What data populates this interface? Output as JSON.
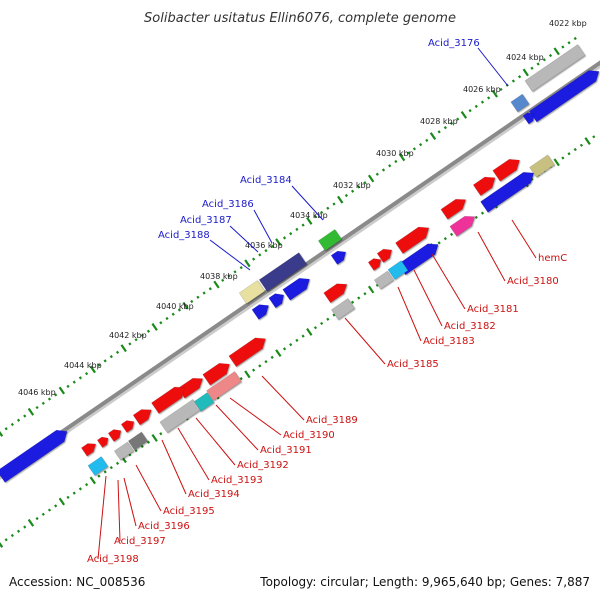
{
  "title": "Solibacter usitatus Ellin6076, complete genome",
  "footer": {
    "accession_label": "Accession:",
    "accession": "NC_008536",
    "topology_label": "Topology:",
    "topology": "circular",
    "length_label": "Length:",
    "length": "9,965,640 bp",
    "genes_label": "Genes:",
    "genes": "7,887"
  },
  "colors": {
    "backbone": "#8a8a8a",
    "tick": "#1a8a1a",
    "label_blue": "#1a1acc",
    "label_red": "#cc1111",
    "gene_red": "#ee1111",
    "gene_blue": "#1a1ae0",
    "gene_gray": "#b8b8b8",
    "gene_navy": "#3a3a8c",
    "gene_green": "#33bb33",
    "gene_yellow": "#e8e0a0",
    "gene_cyan": "#22bbee",
    "gene_pink": "#ee3399",
    "gene_teal": "#22bbbb",
    "gene_olive": "#c8c080",
    "gene_steel": "#5588cc",
    "gene_darkgray": "#777777",
    "gene_lightred": "#ee8888"
  },
  "ticks": [
    "4022 kbp",
    "4024 kbp",
    "4026 kbp",
    "4028 kbp",
    "4030 kbp",
    "4032 kbp",
    "4034 kbp",
    "4036 kbp",
    "4038 kbp",
    "4040 kbp",
    "4042 kbp",
    "4044 kbp",
    "4046 kbp"
  ],
  "genes": [
    {
      "label": "Acid_3176",
      "strand": "forward"
    },
    {
      "label": "Acid_3184",
      "strand": "forward"
    },
    {
      "label": "Acid_3186",
      "strand": "forward"
    },
    {
      "label": "Acid_3187",
      "strand": "forward"
    },
    {
      "label": "Acid_3188",
      "strand": "forward"
    },
    {
      "label": "hemC",
      "strand": "reverse"
    },
    {
      "label": "Acid_3180",
      "strand": "reverse"
    },
    {
      "label": "Acid_3181",
      "strand": "reverse"
    },
    {
      "label": "Acid_3182",
      "strand": "reverse"
    },
    {
      "label": "Acid_3183",
      "strand": "reverse"
    },
    {
      "label": "Acid_3185",
      "strand": "reverse"
    },
    {
      "label": "Acid_3189",
      "strand": "reverse"
    },
    {
      "label": "Acid_3190",
      "strand": "reverse"
    },
    {
      "label": "Acid_3191",
      "strand": "reverse"
    },
    {
      "label": "Acid_3192",
      "strand": "reverse"
    },
    {
      "label": "Acid_3193",
      "strand": "reverse"
    },
    {
      "label": "Acid_3194",
      "strand": "reverse"
    },
    {
      "label": "Acid_3195",
      "strand": "reverse"
    },
    {
      "label": "Acid_3196",
      "strand": "reverse"
    },
    {
      "label": "Acid_3197",
      "strand": "reverse"
    },
    {
      "label": "Acid_3198",
      "strand": "reverse"
    }
  ]
}
